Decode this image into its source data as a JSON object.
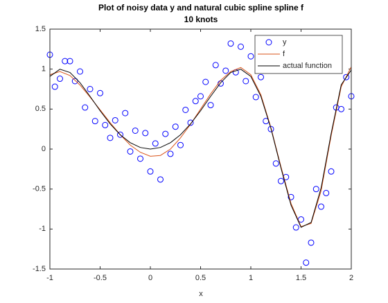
{
  "chart_data": {
    "type": "line",
    "title": [
      "Plot of noisy data y and natural cubic spline spline f",
      "10 knots"
    ],
    "xlabel": "x",
    "xlim": [
      -1,
      2
    ],
    "xticks": [
      -1,
      -0.5,
      0,
      0.5,
      1,
      1.5,
      2
    ],
    "ylim": [
      -1.5,
      1.5
    ],
    "yticks": [
      -1.5,
      -1,
      -0.5,
      0,
      0.5,
      1,
      1.5
    ],
    "legend": "northeast",
    "series": [
      {
        "name": "y",
        "color": "#0000ff",
        "marker": "circle",
        "line": false,
        "x": [
          -1,
          -0.95,
          -0.9,
          -0.85,
          -0.8,
          -0.75,
          -0.7,
          -0.65,
          -0.6,
          -0.55,
          -0.5,
          -0.45,
          -0.4,
          -0.35,
          -0.3,
          -0.25,
          -0.2,
          -0.15,
          -0.1,
          -0.05,
          0,
          0.05,
          0.1,
          0.15,
          0.2,
          0.25,
          0.3,
          0.35,
          0.4,
          0.45,
          0.5,
          0.55,
          0.6,
          0.65,
          0.7,
          0.75,
          0.8,
          0.85,
          0.9,
          0.95,
          1,
          1.05,
          1.1,
          1.15,
          1.2,
          1.25,
          1.3,
          1.35,
          1.4,
          1.45,
          1.5,
          1.55,
          1.6,
          1.65,
          1.7,
          1.75,
          1.8,
          1.85,
          1.9,
          1.95,
          2
        ],
        "values": [
          1.18,
          0.78,
          0.88,
          1.1,
          1.1,
          0.85,
          0.97,
          0.52,
          0.75,
          0.35,
          0.7,
          0.3,
          0.14,
          0.36,
          0.18,
          0.45,
          -0.03,
          0.23,
          -0.12,
          0.2,
          -0.28,
          0.07,
          -0.38,
          0.19,
          -0.06,
          0.28,
          0.05,
          0.49,
          0.33,
          0.6,
          0.66,
          0.84,
          0.55,
          1.05,
          0.82,
          0.98,
          1.32,
          0.96,
          1.28,
          0.85,
          1.16,
          0.65,
          0.9,
          0.35,
          0.25,
          -0.18,
          -0.4,
          -0.35,
          -0.6,
          -0.98,
          -0.88,
          -1.42,
          -1.17,
          -0.5,
          -0.72,
          -0.55,
          -0.28,
          0.52,
          0.5,
          0.9,
          0.66
        ]
      },
      {
        "name": "f",
        "color": "#d95319",
        "marker": "none",
        "line": true,
        "x": [
          -1,
          -0.9,
          -0.8,
          -0.7,
          -0.6,
          -0.5,
          -0.4,
          -0.3,
          -0.2,
          -0.1,
          0,
          0.1,
          0.2,
          0.3,
          0.4,
          0.5,
          0.6,
          0.7,
          0.8,
          0.9,
          1,
          1.1,
          1.2,
          1.3,
          1.4,
          1.5,
          1.6,
          1.7,
          1.8,
          1.9,
          2
        ],
        "values": [
          0.93,
          0.97,
          0.92,
          0.8,
          0.65,
          0.49,
          0.33,
          0.18,
          0.05,
          -0.04,
          -0.09,
          -0.08,
          0,
          0.14,
          0.31,
          0.5,
          0.69,
          0.86,
          0.97,
          1.02,
          0.93,
          0.68,
          0.27,
          -0.22,
          -0.68,
          -0.97,
          -0.93,
          -0.52,
          0.17,
          0.78,
          1.03
        ]
      },
      {
        "name": "actual function",
        "color": "#000000",
        "marker": "none",
        "line": true,
        "x": [
          -1,
          -0.9,
          -0.8,
          -0.7,
          -0.6,
          -0.5,
          -0.4,
          -0.3,
          -0.2,
          -0.1,
          0,
          0.1,
          0.2,
          0.3,
          0.4,
          0.5,
          0.6,
          0.7,
          0.8,
          0.9,
          1,
          1.1,
          1.2,
          1.3,
          1.4,
          1.5,
          1.6,
          1.7,
          1.8,
          1.9,
          2
        ],
        "values": [
          0.909,
          0.999,
          0.958,
          0.83,
          0.659,
          0.479,
          0.315,
          0.179,
          0.08,
          0.02,
          0,
          0.02,
          0.08,
          0.179,
          0.315,
          0.479,
          0.659,
          0.83,
          0.958,
          0.999,
          0.909,
          0.66,
          0.259,
          -0.236,
          -0.701,
          -0.978,
          -0.918,
          -0.485,
          0.197,
          0.805,
          0.989
        ]
      }
    ]
  }
}
